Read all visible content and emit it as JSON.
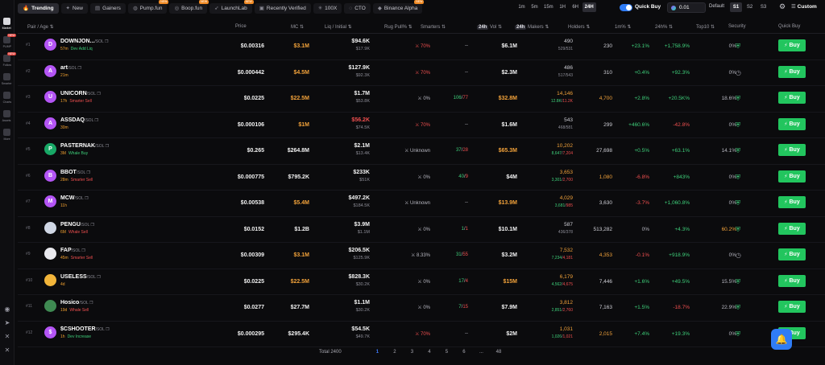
{
  "sidebar": {
    "items": [
      {
        "label": "Market",
        "active": true
      },
      {
        "label": "PUMP",
        "badge": "NEW"
      },
      {
        "label": "Follow",
        "badge": "NEW"
      },
      {
        "label": "Smarter"
      },
      {
        "label": "Charts"
      },
      {
        "label": "Assets"
      },
      {
        "label": "More"
      }
    ],
    "bottom_icons": [
      "discord-icon",
      "telegram-icon",
      "twitter-icon",
      "x-icon"
    ]
  },
  "tabs": [
    {
      "label": "Trending",
      "icon": "flame-icon",
      "active": true
    },
    {
      "label": "New",
      "icon": "sparkle-icon"
    },
    {
      "label": "Gainers",
      "icon": "chart-up-icon"
    },
    {
      "label": "Pump.fun",
      "icon": "pill-icon",
      "badge": "NEW"
    },
    {
      "label": "Boop.fun",
      "icon": "boop-icon",
      "badge": "NEW"
    },
    {
      "label": "LaunchLab",
      "icon": "rocket-icon",
      "badge": "NEW"
    },
    {
      "label": "Recently Verified",
      "icon": "verified-icon"
    },
    {
      "label": "100X",
      "icon": "x100-icon"
    },
    {
      "label": "CTO",
      "icon": "cto-icon"
    },
    {
      "label": "Binance Alpha",
      "icon": "binance-icon",
      "badge": "NEW"
    }
  ],
  "timeframes": [
    {
      "label": "1m"
    },
    {
      "label": "5m"
    },
    {
      "label": "15m"
    },
    {
      "label": "1H"
    },
    {
      "label": "6H"
    },
    {
      "label": "24H",
      "active": true
    }
  ],
  "quickbuy": {
    "label": "Quick Buy",
    "amount": "0.01"
  },
  "presets": {
    "label": "Default",
    "items": [
      {
        "label": "S1",
        "active": true
      },
      {
        "label": "S2"
      },
      {
        "label": "S3"
      }
    ]
  },
  "custom_label": "Custom",
  "columns": {
    "pair": "Pair / Age",
    "price": "Price",
    "mc": "MC",
    "liq": "Liq / Initial",
    "rug": "Rug Pull%",
    "smarters": "Smarters",
    "vol_chip": "24h",
    "vol": "Vol",
    "markers_chip": "24h",
    "markers": "Makers",
    "holders": "Holders",
    "m1": "1m%",
    "h24": "24h%",
    "top10": "Top10",
    "security": "Security",
    "quickbuy": "Quick Buy"
  },
  "buy_label": "Buy",
  "rows": [
    {
      "idx": "#1",
      "letter": "D",
      "color": "#b455f5",
      "name": "DOWNJON...",
      "chain": "/SOL",
      "age": "57m",
      "tag": "Dev Add Liq",
      "tag_red": false,
      "price": "$0.00316",
      "mc": "$3.1M",
      "mc_color": "orange",
      "liq": "$94.6K",
      "liq_red": false,
      "liq_init": "$17.9K",
      "rug": "70%",
      "rug_red": true,
      "smart_g": "",
      "smart_r": "",
      "smart_plain": "--",
      "vol": "$6.1M",
      "vol_orange": false,
      "mk": "490",
      "mk_orange": false,
      "mk_g": "529",
      "mk_r": "531",
      "mk_plain": true,
      "holders": "230",
      "holders_orange": false,
      "m1": "+23.1%",
      "m1_c": "pos",
      "h24": "+1,758.9%",
      "h24_c": "pos",
      "top10": "0%",
      "top10_orange": false,
      "sec": "shield"
    },
    {
      "idx": "#2",
      "letter": "A",
      "color": "#b455f5",
      "name": "art",
      "chain": "/SOL",
      "age": "21m",
      "tag": "",
      "tag_red": false,
      "price": "$0.000442",
      "mc": "$4.5M",
      "mc_color": "orange",
      "liq": "$127.9K",
      "liq_red": false,
      "liq_init": "$92.3K",
      "rug": "70%",
      "rug_red": true,
      "smart_g": "",
      "smart_r": "",
      "smart_plain": "--",
      "vol": "$2.3M",
      "vol_orange": false,
      "mk": "486",
      "mk_orange": false,
      "mk_g": "517",
      "mk_r": "543",
      "mk_plain": true,
      "holders": "310",
      "holders_orange": false,
      "m1": "+0.4%",
      "m1_c": "pos",
      "h24": "+92.3%",
      "h24_c": "pos",
      "top10": "0%",
      "top10_orange": false,
      "sec": "clock"
    },
    {
      "idx": "#3",
      "letter": "U",
      "color": "#b455f5",
      "name": "UNICORN",
      "chain": "/SOL",
      "age": "17h",
      "tag": "Smarter Sell",
      "tag_red": true,
      "price": "$0.0225",
      "mc": "$22.5M",
      "mc_color": "orange",
      "liq": "$1.7M",
      "liq_red": false,
      "liq_init": "$53.8K",
      "rug": "0%",
      "rug_red": false,
      "smart_g": "106",
      "smart_r": "77",
      "smart_plain": "",
      "vol": "$32.8M",
      "vol_orange": true,
      "mk": "14,146",
      "mk_orange": true,
      "mk_g": "12.8K",
      "mk_r": "11.2K",
      "mk_plain": false,
      "holders": "4,700",
      "holders_orange": true,
      "m1": "+2.8%",
      "m1_c": "pos",
      "h24": "+20.5K%",
      "h24_c": "pos",
      "top10": "18.6%",
      "top10_orange": false,
      "sec": "shield"
    },
    {
      "idx": "#4",
      "letter": "A",
      "color": "#b455f5",
      "name": "ASSDAQ",
      "chain": "/SOL",
      "age": "30m",
      "tag": "",
      "tag_red": false,
      "price": "$0.000106",
      "mc": "$1M",
      "mc_color": "orange",
      "liq": "$56.2K",
      "liq_red": true,
      "liq_init": "$74.5K",
      "rug": "70%",
      "rug_red": true,
      "smart_g": "",
      "smart_r": "",
      "smart_plain": "--",
      "vol": "$1.6M",
      "vol_orange": false,
      "mk": "543",
      "mk_orange": false,
      "mk_g": "468",
      "mk_r": "581",
      "mk_plain": true,
      "holders": "299",
      "holders_orange": false,
      "m1": "+460.6%",
      "m1_c": "pos",
      "h24": "-42.8%",
      "h24_c": "neg",
      "top10": "0%",
      "top10_orange": false,
      "sec": "shield"
    },
    {
      "idx": "#5",
      "letter": "P",
      "color": "#18a866",
      "name": "PASTERNAK",
      "chain": "/SOL",
      "age": "3M",
      "tag": "Whale Buy",
      "tag_red": false,
      "price": "$0.265",
      "mc": "$264.8M",
      "mc_color": "white",
      "liq": "$2.1M",
      "liq_red": false,
      "liq_init": "$13.4K",
      "rug": "Unknown",
      "rug_red": false,
      "smart_g": "37",
      "smart_r": "28",
      "smart_plain": "",
      "vol": "$65.3M",
      "vol_orange": true,
      "mk": "10,202",
      "mk_orange": true,
      "mk_g": "8,647",
      "mk_r": "7,204",
      "mk_plain": false,
      "holders": "27,698",
      "holders_orange": false,
      "m1": "+0.5%",
      "m1_c": "pos",
      "h24": "+63.1%",
      "h24_c": "pos",
      "top10": "14.1%",
      "top10_orange": false,
      "sec": "shield"
    },
    {
      "idx": "#6",
      "letter": "B",
      "color": "#b455f5",
      "name": "BBOT",
      "chain": "/SOL",
      "age": "28m",
      "tag": "Smarter Sell",
      "tag_red": true,
      "price": "$0.000775",
      "mc": "$795.2K",
      "mc_color": "white",
      "liq": "$233K",
      "liq_red": false,
      "liq_init": "$51K",
      "rug": "0%",
      "rug_red": false,
      "smart_g": "40",
      "smart_r": "9",
      "smart_plain": "",
      "vol": "$4M",
      "vol_orange": false,
      "mk": "3,653",
      "mk_orange": true,
      "mk_g": "3,301",
      "mk_r": "2,700",
      "mk_plain": false,
      "holders": "1,080",
      "holders_orange": true,
      "m1": "-6.8%",
      "m1_c": "neg",
      "h24": "+843%",
      "h24_c": "pos",
      "top10": "0%",
      "top10_orange": false,
      "sec": "shield"
    },
    {
      "idx": "#7",
      "letter": "M",
      "color": "#b455f5",
      "name": "MCW",
      "chain": "/SOL",
      "age": "11h",
      "tag": "",
      "tag_red": false,
      "price": "$0.00538",
      "mc": "$5.4M",
      "mc_color": "orange",
      "liq": "$497.2K",
      "liq_red": false,
      "liq_init": "$184.5K",
      "rug": "Unknown",
      "rug_red": false,
      "smart_g": "",
      "smart_r": "",
      "smart_plain": "--",
      "vol": "$13.9M",
      "vol_orange": true,
      "mk": "4,029",
      "mk_orange": true,
      "mk_g": "3,681",
      "mk_r": "985",
      "mk_plain": false,
      "holders": "3,630",
      "holders_orange": false,
      "m1": "-3.7%",
      "m1_c": "neg",
      "h24": "+1,060.8%",
      "h24_c": "pos",
      "top10": "0%",
      "top10_orange": false,
      "sec": "shield"
    },
    {
      "idx": "#8",
      "letter": "",
      "color": "#cfd6e4",
      "name": "PENGU",
      "chain": "/SOL",
      "age": "6M",
      "tag": "Whale Sell",
      "tag_red": true,
      "price": "$0.0152",
      "mc": "$1.2B",
      "mc_color": "white",
      "liq": "$3.9M",
      "liq_red": false,
      "liq_init": "$1.1M",
      "rug": "0%",
      "rug_red": false,
      "smart_g": "1",
      "smart_r": "1",
      "smart_plain": "",
      "vol": "$10.1M",
      "vol_orange": false,
      "mk": "587",
      "mk_orange": false,
      "mk_g": "436",
      "mk_r": "378",
      "mk_plain": true,
      "holders": "513,282",
      "holders_orange": false,
      "m1": "0%",
      "m1_c": "neu",
      "h24": "+4.3%",
      "h24_c": "pos",
      "top10": "60.2%",
      "top10_orange": true,
      "sec": "shield"
    },
    {
      "idx": "#9",
      "letter": "",
      "color": "#e9e9ee",
      "name": "FAP",
      "chain": "/SOL",
      "age": "45m",
      "tag": "Smarter Sell",
      "tag_red": true,
      "price": "$0.00309",
      "mc": "$3.1M",
      "mc_color": "orange",
      "liq": "$206.5K",
      "liq_red": false,
      "liq_init": "$125.9K",
      "rug": "8.33%",
      "rug_red": false,
      "smart_g": "31",
      "smart_r": "55",
      "smart_plain": "",
      "vol": "$3.2M",
      "vol_orange": false,
      "mk": "7,532",
      "mk_orange": true,
      "mk_g": "7,234",
      "mk_r": "4,181",
      "mk_plain": false,
      "holders": "4,353",
      "holders_orange": true,
      "m1": "-0.1%",
      "m1_c": "neg",
      "h24": "+918.9%",
      "h24_c": "pos",
      "top10": "0%",
      "top10_orange": false,
      "sec": "clock"
    },
    {
      "idx": "#10",
      "letter": "",
      "color": "#f2b53a",
      "name": "USELESS",
      "chain": "/SOL",
      "age": "4d",
      "tag": "",
      "tag_red": false,
      "price": "$0.0225",
      "mc": "$22.5M",
      "mc_color": "orange",
      "liq": "$828.3K",
      "liq_red": false,
      "liq_init": "$30.2K",
      "rug": "0%",
      "rug_red": false,
      "smart_g": "17",
      "smart_r": "4",
      "smart_plain": "",
      "vol": "$15M",
      "vol_orange": true,
      "mk": "6,179",
      "mk_orange": true,
      "mk_g": "4,562",
      "mk_r": "4,675",
      "mk_plain": false,
      "holders": "7,446",
      "holders_orange": false,
      "m1": "+1.6%",
      "m1_c": "pos",
      "h24": "+49.5%",
      "h24_c": "pos",
      "top10": "15.5%",
      "top10_orange": false,
      "sec": "shield"
    },
    {
      "idx": "#11",
      "letter": "",
      "color": "#3f8a52",
      "name": "Hosico",
      "chain": "/SOL",
      "age": "19d",
      "tag": "Whale Sell",
      "tag_red": true,
      "price": "$0.0277",
      "mc": "$27.7M",
      "mc_color": "white",
      "liq": "$1.1M",
      "liq_red": false,
      "liq_init": "$30.2K",
      "rug": "0%",
      "rug_red": false,
      "smart_g": "7",
      "smart_r": "15",
      "smart_plain": "",
      "vol": "$7.9M",
      "vol_orange": false,
      "mk": "3,812",
      "mk_orange": true,
      "mk_g": "2,851",
      "mk_r": "2,760",
      "mk_plain": false,
      "holders": "7,163",
      "holders_orange": false,
      "m1": "+1.5%",
      "m1_c": "pos",
      "h24": "-18.7%",
      "h24_c": "neg",
      "top10": "22.9%",
      "top10_orange": false,
      "sec": "shield"
    },
    {
      "idx": "#12",
      "letter": "$",
      "color": "#b455f5",
      "name": "$CSHOOTER",
      "chain": "/SOL",
      "age": "1h",
      "tag": "Dev Increase",
      "tag_red": false,
      "price": "$0.000295",
      "mc": "$295.4K",
      "mc_color": "white",
      "liq": "$54.5K",
      "liq_red": false,
      "liq_init": "$49.7K",
      "rug": "70%",
      "rug_red": true,
      "smart_g": "",
      "smart_r": "",
      "smart_plain": "--",
      "vol": "$2M",
      "vol_orange": false,
      "mk": "1,031",
      "mk_orange": true,
      "mk_g": "1,026",
      "mk_r": "1,021",
      "mk_plain": false,
      "holders": "2,015",
      "holders_orange": true,
      "m1": "+7.4%",
      "m1_c": "pos",
      "h24": "+19.3%",
      "h24_c": "pos",
      "top10": "0%",
      "top10_orange": false,
      "sec": "shield"
    }
  ],
  "pagination": {
    "total": "Total 2400",
    "pages": [
      "1",
      "2",
      "3",
      "4",
      "5",
      "6",
      "...",
      "48"
    ],
    "active": "1"
  }
}
